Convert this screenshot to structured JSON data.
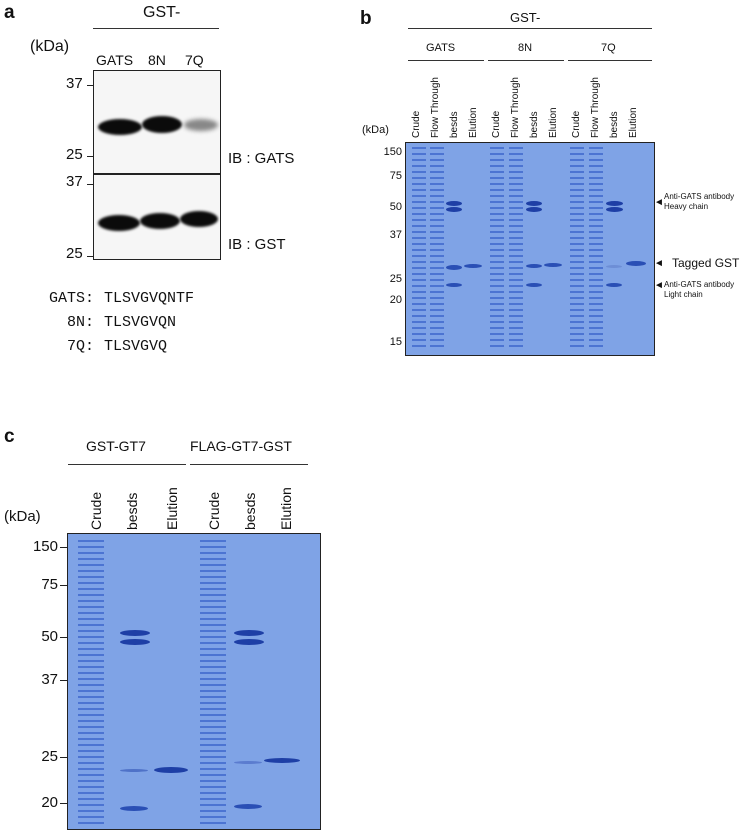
{
  "panel_a": {
    "letter": "a",
    "header": "GST-",
    "kda_label": "(kDa)",
    "lanes": [
      "GATS",
      "8N",
      "7Q"
    ],
    "blot1_markers": [
      "37",
      "25"
    ],
    "blot2_markers": [
      "37",
      "25"
    ],
    "blot1_label": "IB : GATS",
    "blot2_label": "IB : GST",
    "sequences": [
      {
        "name": "GATS:",
        "seq": "TLSVGVQNTF"
      },
      {
        "name": "8N:",
        "seq": "TLSVGVQN"
      },
      {
        "name": "7Q:",
        "seq": "TLSVGVQ"
      }
    ]
  },
  "panel_b": {
    "letter": "b",
    "header": "GST-",
    "groups": [
      "GATS",
      "8N",
      "7Q"
    ],
    "lane_labels": [
      "Crude",
      "Flow Through",
      "besds",
      "Elution"
    ],
    "kda_label": "(kDa)",
    "markers": [
      "150",
      "75",
      "50",
      "37",
      "25",
      "20",
      "15"
    ],
    "annotations": {
      "heavy_line1": "Anti-GATS antibody",
      "heavy_line2": "Heavy chain",
      "tagged": "Tagged GST",
      "light_line1": "Anti-GATS antibody",
      "light_line2": "Light chain",
      "arrow": "◄"
    }
  },
  "panel_c": {
    "letter": "c",
    "groups": [
      "GST-GT7",
      "FLAG-GT7-GST"
    ],
    "lane_labels": [
      "Crude",
      "besds",
      "Elution"
    ],
    "kda_label": "(kDa)",
    "markers": [
      "150",
      "75",
      "50",
      "37",
      "25",
      "20"
    ]
  },
  "colors": {
    "coomassie": "#7fa3e6",
    "band_dark": "#1e3fa6",
    "blot_band": "#0a0a0a"
  }
}
